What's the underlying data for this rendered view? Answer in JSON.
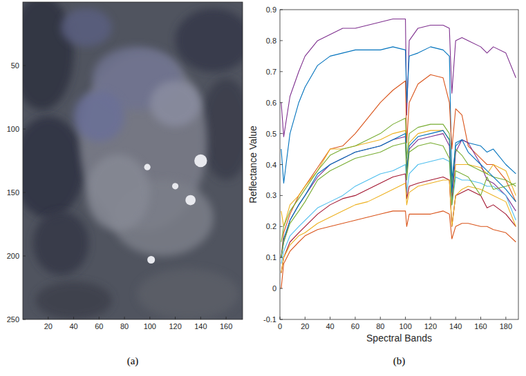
{
  "chart_data": [
    {
      "type": "image",
      "caption": "(a)",
      "xlim": [
        0,
        173
      ],
      "xticks": [
        20,
        40,
        60,
        80,
        100,
        120,
        140,
        160
      ],
      "ylim": [
        0,
        250
      ],
      "yticks": [
        50,
        100,
        150,
        200,
        250
      ]
    },
    {
      "type": "line",
      "caption": "(b)",
      "x_label": "Spectral Bands",
      "y_label": "Reflectance Value",
      "xlim": [
        0,
        190
      ],
      "xticks": [
        0,
        20,
        40,
        60,
        80,
        100,
        120,
        140,
        160,
        180
      ],
      "ylim": [
        -0.1,
        0.9
      ],
      "yticks": [
        -0.1,
        0,
        0.1,
        0.2,
        0.3,
        0.4,
        0.5,
        0.6,
        0.7,
        0.8,
        0.9
      ],
      "grid": false,
      "x": [
        1,
        3,
        8,
        15,
        20,
        30,
        40,
        50,
        60,
        70,
        80,
        90,
        100,
        101,
        103,
        110,
        120,
        130,
        135,
        137,
        140,
        145,
        150,
        160,
        165,
        170,
        180,
        188
      ],
      "series": [
        {
          "color": "#7E2F8E",
          "values": [
            0.6,
            0.49,
            0.62,
            0.7,
            0.75,
            0.8,
            0.82,
            0.84,
            0.84,
            0.85,
            0.86,
            0.87,
            0.87,
            0.56,
            0.8,
            0.84,
            0.85,
            0.85,
            0.84,
            0.63,
            0.8,
            0.81,
            0.8,
            0.78,
            0.76,
            0.78,
            0.76,
            0.68
          ]
        },
        {
          "color": "#0072BD",
          "values": [
            0.45,
            0.34,
            0.5,
            0.6,
            0.65,
            0.72,
            0.75,
            0.76,
            0.77,
            0.77,
            0.77,
            0.78,
            0.77,
            0.6,
            0.75,
            0.76,
            0.78,
            0.77,
            0.75,
            0.35,
            0.46,
            0.48,
            0.47,
            0.46,
            0.44,
            0.45,
            0.4,
            0.37
          ]
        },
        {
          "color": "#D95319",
          "values": [
            0.1,
            0.18,
            0.24,
            0.3,
            0.33,
            0.39,
            0.45,
            0.46,
            0.5,
            0.55,
            0.6,
            0.64,
            0.67,
            0.47,
            0.6,
            0.66,
            0.69,
            0.68,
            0.6,
            0.45,
            0.58,
            0.56,
            0.46,
            0.42,
            0.4,
            0.4,
            0.35,
            0.28
          ]
        },
        {
          "color": "#EDB120",
          "values": [
            0.25,
            0.2,
            0.27,
            0.3,
            0.33,
            0.38,
            0.45,
            0.45,
            0.46,
            0.47,
            0.48,
            0.5,
            0.51,
            0.38,
            0.47,
            0.5,
            0.51,
            0.51,
            0.48,
            0.3,
            0.4,
            0.4,
            0.4,
            0.39,
            0.37,
            0.4,
            0.38,
            0.3
          ]
        },
        {
          "color": "#7E2F8E",
          "values": [
            0.1,
            0.15,
            0.22,
            0.27,
            0.3,
            0.36,
            0.4,
            0.42,
            0.44,
            0.45,
            0.46,
            0.48,
            0.49,
            0.37,
            0.45,
            0.48,
            0.49,
            0.5,
            0.46,
            0.28,
            0.44,
            0.48,
            0.47,
            0.4,
            0.35,
            0.34,
            0.3,
            0.25
          ]
        },
        {
          "color": "#77AC30",
          "values": [
            0.15,
            0.2,
            0.25,
            0.29,
            0.32,
            0.38,
            0.43,
            0.45,
            0.46,
            0.48,
            0.5,
            0.53,
            0.55,
            0.42,
            0.5,
            0.52,
            0.53,
            0.53,
            0.5,
            0.33,
            0.45,
            0.43,
            0.4,
            0.38,
            0.37,
            0.36,
            0.35,
            0.33
          ]
        },
        {
          "color": "#4DBEEE",
          "values": [
            0.08,
            0.12,
            0.17,
            0.2,
            0.22,
            0.26,
            0.28,
            0.3,
            0.33,
            0.35,
            0.37,
            0.38,
            0.4,
            0.31,
            0.37,
            0.4,
            0.41,
            0.42,
            0.41,
            0.27,
            0.36,
            0.35,
            0.35,
            0.34,
            0.33,
            0.33,
            0.3,
            0.22
          ]
        },
        {
          "color": "#A2142F",
          "values": [
            0.05,
            0.1,
            0.15,
            0.18,
            0.2,
            0.24,
            0.27,
            0.29,
            0.3,
            0.32,
            0.34,
            0.36,
            0.37,
            0.29,
            0.33,
            0.34,
            0.35,
            0.36,
            0.35,
            0.2,
            0.3,
            0.31,
            0.32,
            0.3,
            0.26,
            0.27,
            0.24,
            0.2
          ]
        },
        {
          "color": "#0072BD",
          "values": [
            0.1,
            0.16,
            0.22,
            0.27,
            0.3,
            0.37,
            0.4,
            0.42,
            0.44,
            0.45,
            0.46,
            0.48,
            0.5,
            0.38,
            0.46,
            0.49,
            0.5,
            0.51,
            0.48,
            0.31,
            0.47,
            0.48,
            0.44,
            0.4,
            0.38,
            0.36,
            0.32,
            0.28
          ]
        },
        {
          "color": "#D95319",
          "values": [
            0.0,
            0.08,
            0.12,
            0.15,
            0.17,
            0.19,
            0.2,
            0.21,
            0.22,
            0.23,
            0.24,
            0.25,
            0.25,
            0.2,
            0.24,
            0.24,
            0.24,
            0.25,
            0.24,
            0.16,
            0.2,
            0.21,
            0.21,
            0.2,
            0.2,
            0.19,
            0.18,
            0.15
          ]
        },
        {
          "color": "#EDB120",
          "values": [
            0.05,
            0.1,
            0.14,
            0.17,
            0.18,
            0.21,
            0.23,
            0.25,
            0.27,
            0.28,
            0.3,
            0.32,
            0.34,
            0.27,
            0.31,
            0.33,
            0.34,
            0.35,
            0.35,
            0.2,
            0.3,
            0.32,
            0.33,
            0.32,
            0.31,
            0.3,
            0.28,
            0.2
          ]
        },
        {
          "color": "#77AC30",
          "values": [
            0.1,
            0.15,
            0.21,
            0.25,
            0.28,
            0.35,
            0.38,
            0.4,
            0.42,
            0.43,
            0.44,
            0.46,
            0.47,
            0.35,
            0.44,
            0.46,
            0.47,
            0.46,
            0.42,
            0.27,
            0.38,
            0.37,
            0.36,
            0.3,
            0.36,
            0.32,
            0.33,
            0.34
          ]
        }
      ]
    }
  ]
}
